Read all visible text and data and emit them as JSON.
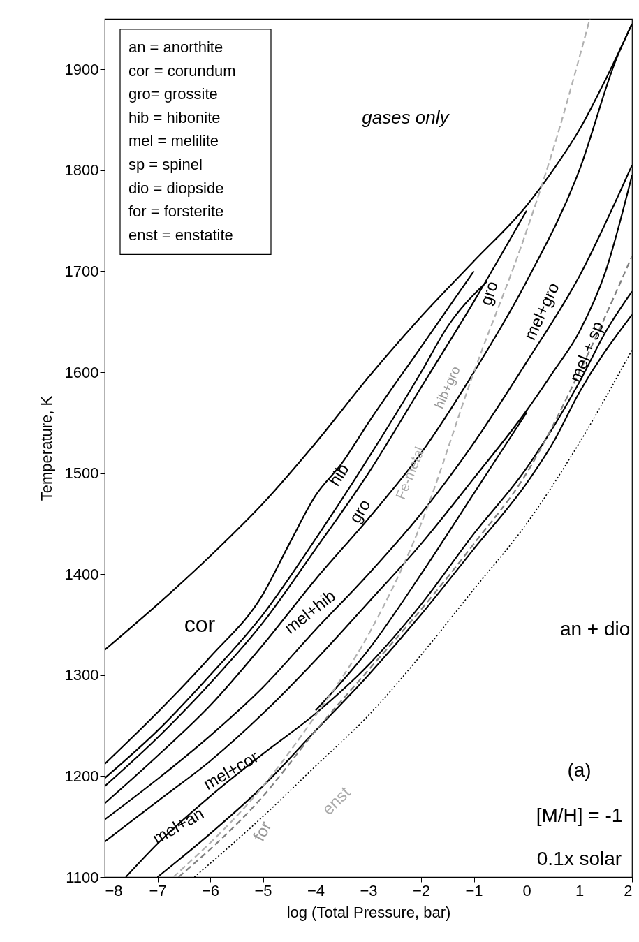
{
  "chart_data": {
    "type": "line",
    "xlabel": "log (Total Pressure, bar)",
    "ylabel": "Temperature, K",
    "xlim": [
      -8,
      2
    ],
    "xticks": [
      -8,
      -7,
      -6,
      -5,
      -4,
      -3,
      -2,
      -1,
      0,
      1,
      2
    ],
    "ylim": [
      1100,
      1950
    ],
    "yticks": [
      1100,
      1200,
      1300,
      1400,
      1500,
      1600,
      1700,
      1800,
      1900
    ],
    "grid": false,
    "series": [
      {
        "color": "#000000",
        "line_style": "solid",
        "x": [
          -8,
          -7,
          -6,
          -5,
          -4,
          -3,
          -2,
          -1,
          0,
          0.5,
          1,
          1.5,
          2
        ],
        "values": [
          1325,
          1370,
          1418,
          1470,
          1530,
          1595,
          1655,
          1710,
          1765,
          1800,
          1840,
          1890,
          1945
        ]
      },
      {
        "color": "#000000",
        "line_style": "solid",
        "x": [
          -8,
          -7,
          -6,
          -5,
          -4.5,
          -4,
          -3.5,
          -3,
          -2,
          -1
        ],
        "values": [
          1212,
          1263,
          1318,
          1380,
          1430,
          1478,
          1510,
          1550,
          1625,
          1700
        ]
      },
      {
        "color": "#000000",
        "line_style": "solid",
        "x": [
          -8,
          -7,
          -6,
          -5,
          -4,
          -3,
          -2,
          -1.5,
          -0.75
        ],
        "values": [
          1198,
          1245,
          1300,
          1360,
          1435,
          1515,
          1600,
          1645,
          1690
        ]
      },
      {
        "color": "#000000",
        "line_style": "solid",
        "x": [
          -8,
          -7,
          -6,
          -5,
          -4,
          -3,
          -2,
          -1,
          0
        ],
        "values": [
          1190,
          1238,
          1292,
          1352,
          1425,
          1500,
          1585,
          1670,
          1760
        ]
      },
      {
        "color": "#000000",
        "line_style": "solid",
        "x": [
          -8,
          -7,
          -6,
          -5,
          -4,
          -3,
          -2,
          -1,
          0,
          1,
          1.7,
          2
        ],
        "values": [
          1173,
          1220,
          1270,
          1330,
          1395,
          1455,
          1520,
          1600,
          1690,
          1800,
          1910,
          1945
        ]
      },
      {
        "color": "#000000",
        "line_style": "solid",
        "x": [
          -8,
          -7,
          -6,
          -5,
          -4,
          -3,
          -2,
          -1,
          0,
          1,
          2
        ],
        "values": [
          1157,
          1197,
          1240,
          1288,
          1345,
          1400,
          1460,
          1530,
          1610,
          1695,
          1805
        ]
      },
      {
        "color": "#000000",
        "line_style": "solid",
        "x": [
          -8,
          -7,
          -6,
          -5,
          -4,
          -3,
          -2,
          -1,
          0,
          0.5,
          1,
          1.5,
          2
        ],
        "values": [
          1135,
          1175,
          1215,
          1262,
          1315,
          1372,
          1430,
          1495,
          1562,
          1600,
          1640,
          1700,
          1795
        ]
      },
      {
        "color": "#000000",
        "line_style": "solid",
        "x": [
          -4,
          -3,
          -2,
          -1,
          0
        ],
        "values": [
          1265,
          1325,
          1400,
          1480,
          1560
        ]
      },
      {
        "color": "#000000",
        "line_style": "solid",
        "x": [
          -7.6,
          -7,
          -6,
          -5,
          -4,
          -3,
          -2,
          -1,
          0,
          1,
          1.5,
          2
        ],
        "values": [
          1100,
          1133,
          1180,
          1222,
          1262,
          1310,
          1370,
          1440,
          1505,
          1590,
          1640,
          1680
        ]
      },
      {
        "color": "#000000",
        "line_style": "solid",
        "x": [
          -7,
          -6,
          -5,
          -4,
          -3,
          -2,
          -1,
          0,
          0.5,
          1,
          2
        ],
        "values": [
          1100,
          1143,
          1190,
          1245,
          1300,
          1360,
          1425,
          1490,
          1530,
          1580,
          1657
        ]
      },
      {
        "color": "#000000",
        "line_style": "dotted",
        "x": [
          -6.3,
          -5,
          -4,
          -3,
          -2,
          -1,
          0,
          1,
          2
        ],
        "values": [
          1100,
          1160,
          1210,
          1260,
          1320,
          1385,
          1450,
          1530,
          1622
        ]
      },
      {
        "color": "#808080",
        "line_style": "dashed",
        "x": [
          -6.6,
          -5,
          -4,
          -3,
          -2,
          -1,
          0,
          1,
          2
        ],
        "values": [
          1100,
          1180,
          1245,
          1305,
          1365,
          1430,
          1500,
          1600,
          1715
        ]
      },
      {
        "color": "#b0b0b0",
        "line_style": "dashed",
        "x": [
          -6.7,
          -5,
          -4,
          -3,
          -2,
          -1,
          0,
          0.5,
          1.2
        ],
        "values": [
          1100,
          1190,
          1260,
          1340,
          1450,
          1600,
          1740,
          1820,
          1950
        ]
      }
    ],
    "annotations": [
      "gases only",
      "cor",
      "an + dio",
      "hib",
      "gro",
      "gro",
      "mel+gro",
      "mel + sp",
      "mel+hib",
      "mel+cor",
      "mel+an",
      "hib+gro",
      "Fe-metal",
      "for",
      "enst",
      "(a)",
      "[M/H] = -1",
      "0.1x solar",
      "an = anorthite",
      "cor = corundum",
      "gro= grossite",
      "hib = hibonite",
      "mel = melilite",
      "sp = spinel",
      "dio = diopside",
      "for = forsterite",
      "enst = enstatite"
    ]
  }
}
